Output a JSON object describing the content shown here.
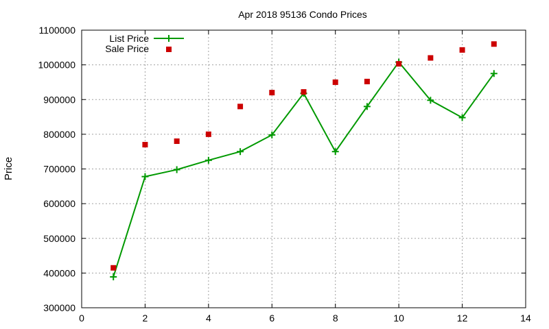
{
  "chart_data": {
    "type": "line",
    "title": "Apr 2018 95136 Condo Prices",
    "xlabel": "",
    "ylabel": "Price",
    "xlim": [
      0,
      14
    ],
    "ylim": [
      300000,
      1100000
    ],
    "x_ticks": [
      "0",
      "2",
      "4",
      "6",
      "8",
      "10",
      "12",
      "14"
    ],
    "y_ticks": [
      "300000",
      "400000",
      "500000",
      "600000",
      "700000",
      "800000",
      "900000",
      "1000000",
      "1100000"
    ],
    "grid": true,
    "legend": "top-left",
    "x": [
      1,
      2,
      3,
      4,
      5,
      6,
      7,
      8,
      9,
      10,
      11,
      12,
      13
    ],
    "series": [
      {
        "name": "List Price",
        "style": "line-with-plus-markers",
        "color": "#009900",
        "values": [
          389000,
          678000,
          698000,
          725000,
          750000,
          798000,
          918000,
          750000,
          880000,
          1008000,
          898000,
          848000,
          975000
        ]
      },
      {
        "name": "Sale Price",
        "style": "square-markers",
        "color": "#cc0000",
        "values": [
          415000,
          770000,
          780000,
          800000,
          880000,
          920000,
          922000,
          950000,
          952000,
          1003000,
          1020000,
          1043000,
          1060000
        ]
      }
    ]
  }
}
